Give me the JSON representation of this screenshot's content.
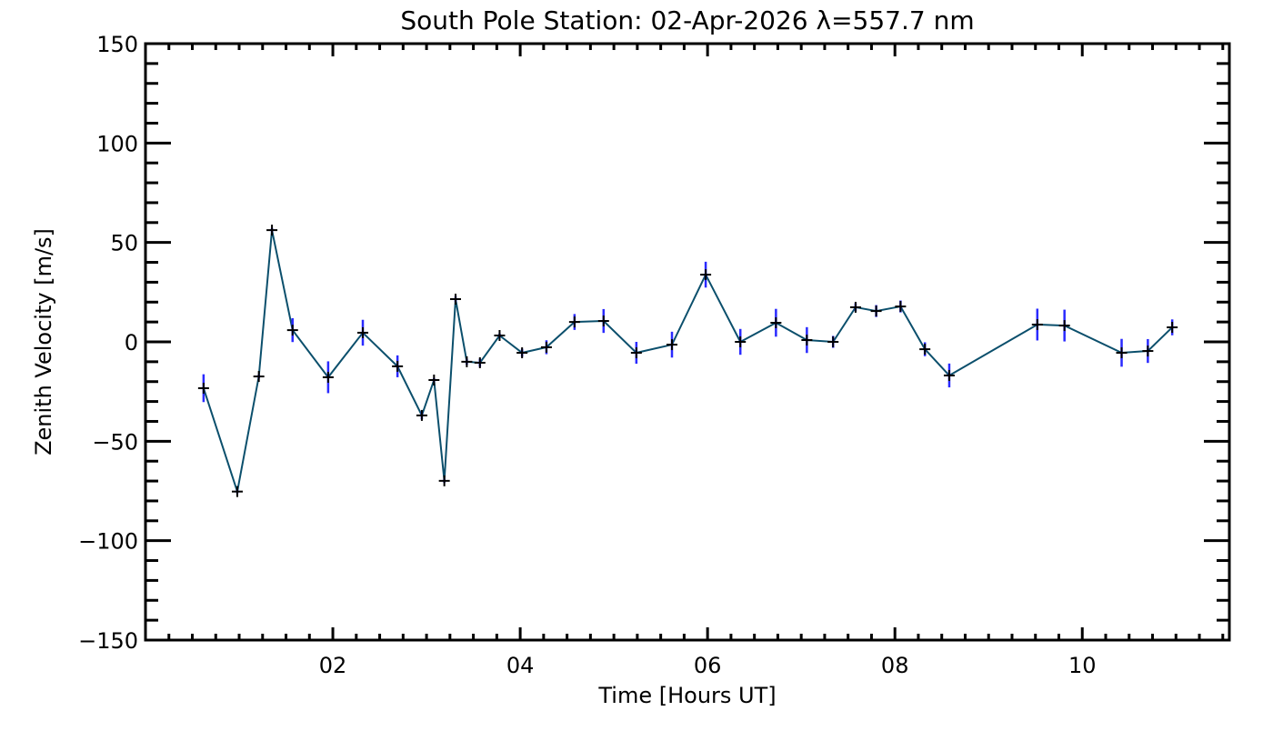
{
  "chart_data": {
    "type": "line",
    "title": "South Pole Station: 02-Apr-2026 λ=557.7 nm",
    "xlabel": "Time [Hours UT]",
    "ylabel": "Zenith Velocity [m/s]",
    "xlim": [
      0,
      11.57
    ],
    "ylim": [
      -150,
      150
    ],
    "xticks": [
      2,
      4,
      6,
      8,
      10
    ],
    "xtick_labels": [
      "02",
      "04",
      "06",
      "08",
      "10"
    ],
    "yticks": [
      -150,
      -100,
      -50,
      0,
      50,
      100,
      150
    ],
    "ytick_labels": [
      "−150",
      "−100",
      "−50",
      "0",
      "50",
      "100",
      "150"
    ],
    "grid": false,
    "colors": {
      "line": "#0b4f6c",
      "errorbar": "#2a2aff",
      "marker": "#000000"
    },
    "series": [
      {
        "name": "Zenith Velocity",
        "x": [
          0.62,
          0.98,
          1.21,
          1.35,
          1.57,
          1.95,
          2.32,
          2.69,
          2.95,
          3.08,
          3.19,
          3.31,
          3.43,
          3.57,
          3.78,
          4.02,
          4.28,
          4.58,
          4.89,
          5.24,
          5.62,
          5.98,
          6.35,
          6.73,
          7.06,
          7.34,
          7.58,
          7.8,
          8.06,
          8.32,
          8.58,
          9.52,
          9.81,
          10.42,
          10.7,
          10.96
        ],
        "y": [
          -23.3,
          -75.3,
          -17.4,
          56.2,
          5.9,
          -17.8,
          4.6,
          -12.3,
          -37,
          -19.2,
          -69.9,
          21.5,
          -10,
          -10.5,
          3.2,
          -5.5,
          -2.7,
          10,
          10.5,
          -5.5,
          -1.4,
          33.8,
          0,
          9.6,
          0.9,
          0,
          17.4,
          15.5,
          17.8,
          -3.7,
          -16.9,
          8.7,
          8.2,
          -5.5,
          -4.6,
          7.3
        ],
        "err": [
          7,
          1,
          1,
          1,
          6,
          8,
          6.5,
          5.5,
          2,
          1,
          1,
          1.5,
          1.5,
          2,
          1,
          2,
          3.5,
          4,
          6,
          5.5,
          6.5,
          6.5,
          6.5,
          7,
          6.5,
          3,
          2,
          3,
          3,
          3.5,
          6,
          8,
          8,
          7,
          6,
          4
        ]
      }
    ]
  }
}
